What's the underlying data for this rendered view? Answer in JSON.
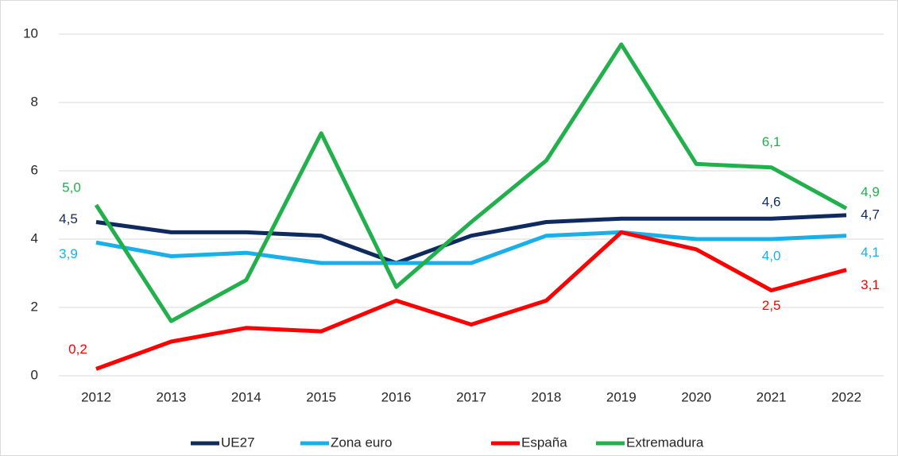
{
  "chart_data": {
    "type": "line",
    "x": [
      "2012",
      "2013",
      "2014",
      "2015",
      "2016",
      "2017",
      "2018",
      "2019",
      "2020",
      "2021",
      "2022"
    ],
    "ylim": [
      0,
      10
    ],
    "yticks": [
      0,
      2,
      4,
      6,
      8,
      10
    ],
    "grid": true,
    "legend": "bottom",
    "series": [
      {
        "name": "UE27",
        "color": "#0e2a5f",
        "values": [
          4.5,
          4.2,
          4.2,
          4.1,
          3.3,
          4.1,
          4.5,
          4.6,
          4.6,
          4.6,
          4.7
        ],
        "value_labels": [
          "4,5",
          null,
          null,
          null,
          null,
          null,
          null,
          null,
          null,
          "4,6",
          "4,7"
        ]
      },
      {
        "name": "Zona euro",
        "color": "#19b0ea",
        "values": [
          3.9,
          3.5,
          3.6,
          3.3,
          3.3,
          3.3,
          4.1,
          4.2,
          4.0,
          4.0,
          4.1
        ],
        "value_labels": [
          "3,9",
          null,
          null,
          null,
          null,
          null,
          null,
          null,
          null,
          "4,0",
          "4,1"
        ]
      },
      {
        "name": "España",
        "color": "#fe0000",
        "values": [
          0.2,
          1.0,
          1.4,
          1.3,
          2.2,
          1.5,
          2.2,
          4.2,
          3.7,
          2.5,
          3.1
        ],
        "value_labels": [
          "0,2",
          null,
          null,
          null,
          null,
          null,
          null,
          null,
          null,
          "2,5",
          "3,1"
        ]
      },
      {
        "name": "Extremadura",
        "color": "#21b04b",
        "values": [
          5.0,
          1.6,
          2.8,
          7.1,
          2.6,
          4.5,
          6.3,
          9.7,
          6.2,
          6.1,
          4.9
        ],
        "value_labels": [
          "5,0",
          null,
          null,
          null,
          null,
          null,
          null,
          null,
          null,
          "6,1",
          "4,9"
        ]
      }
    ]
  }
}
